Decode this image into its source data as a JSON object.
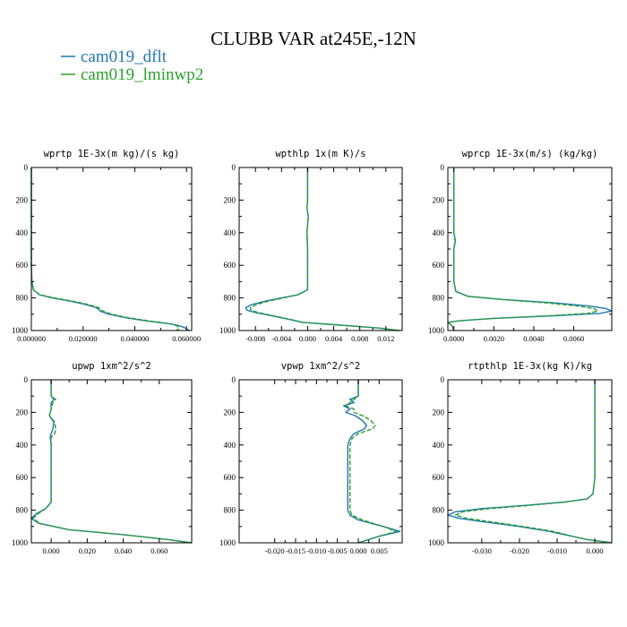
{
  "title": "CLUBB VAR at245E,-12N",
  "legend": [
    {
      "label": "cam019_dflt",
      "color": "#1f77b4"
    },
    {
      "label": "cam019_lminwp2",
      "color": "#2ca02c"
    }
  ],
  "chart_data": [
    {
      "type": "line",
      "title": "wprtp  1E-3x(m kg)/(s kg)",
      "xlim": [
        0,
        0.062
      ],
      "ylim": [
        1000,
        0
      ],
      "xticks": [
        0,
        0.02,
        0.04,
        0.06
      ],
      "xtick_labels": [
        "0.000000",
        "0.020000",
        "0.040000",
        "0.060000"
      ],
      "yticks": [
        0,
        200,
        400,
        600,
        800,
        1000
      ],
      "ytick_labels": [
        "0",
        "200",
        "400",
        "600",
        "800",
        "1000"
      ],
      "series": [
        {
          "name": "cam019_dflt",
          "y": [
            0,
            100,
            200,
            300,
            400,
            500,
            600,
            700,
            750,
            780,
            800,
            820,
            840,
            860,
            870,
            880,
            900,
            920,
            940,
            950,
            960,
            970,
            980,
            990,
            1000
          ],
          "x": [
            0,
            0,
            0,
            0,
            0,
            0,
            0,
            0.0002,
            0.0008,
            0.003,
            0.008,
            0.015,
            0.021,
            0.025,
            0.026,
            0.0265,
            0.03,
            0.036,
            0.044,
            0.049,
            0.054,
            0.057,
            0.059,
            0.06,
            0.061
          ]
        },
        {
          "name": "cam019_lminwp2",
          "y": [
            0,
            100,
            200,
            300,
            400,
            500,
            600,
            700,
            750,
            780,
            800,
            820,
            840,
            860,
            870,
            880,
            900,
            920,
            940,
            950,
            960,
            970,
            980,
            990,
            1000
          ],
          "x": [
            0,
            0,
            0,
            0,
            0,
            0,
            0,
            0.0002,
            0.0008,
            0.0032,
            0.009,
            0.016,
            0.022,
            0.026,
            0.027,
            0.0275,
            0.031,
            0.037,
            0.045,
            0.05,
            0.054,
            0.056,
            0.057,
            0.057,
            0.056
          ]
        }
      ]
    },
    {
      "type": "line",
      "title": "wpthlp  1x(m K)/s",
      "xlim": [
        -0.0105,
        0.0145
      ],
      "ylim": [
        1000,
        0
      ],
      "xticks": [
        -0.008,
        -0.004,
        0,
        0.004,
        0.008,
        0.012
      ],
      "xtick_labels": [
        "-0.008",
        "-0.004",
        "0.000",
        "0.004",
        "0.008",
        "0.012"
      ],
      "yticks": [
        0,
        200,
        400,
        600,
        800,
        1000
      ],
      "ytick_labels": [
        "0",
        "200",
        "400",
        "600",
        "800",
        "1000"
      ],
      "series": [
        {
          "name": "cam019_dflt",
          "y": [
            0,
            100,
            200,
            250,
            300,
            350,
            400,
            500,
            600,
            700,
            750,
            780,
            800,
            820,
            840,
            860,
            875,
            890,
            910,
            930,
            950,
            970,
            985,
            1000
          ],
          "x": [
            0,
            0,
            0,
            -0.0001,
            0.0001,
            0,
            -0.0001,
            0,
            0,
            0,
            0,
            -0.0015,
            -0.004,
            -0.0065,
            -0.0085,
            -0.0095,
            -0.0093,
            -0.008,
            -0.0055,
            -0.003,
            -0.0008,
            0.006,
            0.011,
            0.014
          ]
        },
        {
          "name": "cam019_lminwp2",
          "y": [
            0,
            100,
            200,
            250,
            300,
            350,
            400,
            500,
            600,
            700,
            750,
            780,
            800,
            820,
            840,
            860,
            875,
            890,
            910,
            930,
            950,
            970,
            985,
            1000
          ],
          "x": [
            0,
            0,
            0,
            -0.0001,
            0.0001,
            0,
            -0.0001,
            0,
            0,
            0,
            0,
            -0.0014,
            -0.0037,
            -0.006,
            -0.0078,
            -0.0088,
            -0.0087,
            -0.0075,
            -0.0052,
            -0.0028,
            -0.0007,
            0.006,
            0.011,
            0.014
          ]
        }
      ]
    },
    {
      "type": "line",
      "title": "wprcp  1E-3x(m/s) (kg/kg)",
      "xlim": [
        -0.0003,
        0.0079
      ],
      "ylim": [
        1000,
        0
      ],
      "xticks": [
        0,
        0.002,
        0.004,
        0.006
      ],
      "xtick_labels": [
        "0.0000",
        "0.0020",
        "0.0040",
        "0.0060"
      ],
      "yticks": [
        0,
        200,
        400,
        600,
        800,
        1000
      ],
      "ytick_labels": [
        "0",
        "200",
        "400",
        "600",
        "800",
        "1000"
      ],
      "series": [
        {
          "name": "cam019_dflt",
          "y": [
            0,
            200,
            400,
            450,
            500,
            600,
            700,
            760,
            790,
            810,
            830,
            850,
            865,
            880,
            895,
            910,
            925,
            940,
            950,
            970,
            1000
          ],
          "x": [
            0,
            0,
            0,
            8e-05,
            0,
            0,
            0,
            0.0001,
            0.0007,
            0.0025,
            0.005,
            0.0068,
            0.0076,
            0.0079,
            0.0073,
            0.005,
            0.002,
            0.0003,
            -0.0003,
            -0.0001,
            0
          ]
        },
        {
          "name": "cam019_lminwp2",
          "y": [
            0,
            200,
            400,
            450,
            500,
            600,
            700,
            760,
            790,
            810,
            830,
            850,
            865,
            880,
            895,
            910,
            925,
            940,
            950,
            970,
            1000
          ],
          "x": [
            0,
            0,
            0,
            6e-05,
            0,
            0,
            0,
            0.0001,
            0.0007,
            0.0024,
            0.0046,
            0.0062,
            0.007,
            0.0072,
            0.0067,
            0.0047,
            0.002,
            0.0003,
            -0.0003,
            -0.0001,
            0
          ]
        }
      ]
    },
    {
      "type": "line",
      "title": "upwp  1xm^2/s^2",
      "xlim": [
        -0.011,
        0.078
      ],
      "ylim": [
        1000,
        0
      ],
      "xticks": [
        0,
        0.02,
        0.04,
        0.06
      ],
      "xtick_labels": [
        "0.000",
        "0.020",
        "0.040",
        "0.060"
      ],
      "yticks": [
        0,
        200,
        400,
        600,
        800,
        1000
      ],
      "ytick_labels": [
        "0",
        "200",
        "400",
        "600",
        "800",
        "1000"
      ],
      "series": [
        {
          "name": "cam019_dflt",
          "y": [
            0,
            100,
            120,
            140,
            180,
            220,
            260,
            300,
            330,
            350,
            400,
            500,
            600,
            700,
            750,
            790,
            820,
            850,
            880,
            920,
            950,
            980,
            1000
          ],
          "x": [
            0,
            0,
            0.0015,
            0,
            0,
            -0.001,
            0.0015,
            0.001,
            0,
            -0.0005,
            0,
            0,
            0,
            0,
            0,
            -0.003,
            -0.008,
            -0.011,
            -0.007,
            0.01,
            0.04,
            0.065,
            0.078
          ]
        },
        {
          "name": "cam019_lminwp2",
          "y": [
            0,
            100,
            120,
            140,
            180,
            220,
            260,
            300,
            330,
            350,
            400,
            500,
            600,
            700,
            750,
            790,
            820,
            850,
            880,
            920,
            950,
            980,
            1000
          ],
          "x": [
            0,
            0,
            0.0025,
            0.001,
            0,
            -0.001,
            0.002,
            0.0025,
            0.002,
            0,
            0,
            0,
            0,
            0,
            0,
            -0.003,
            -0.007,
            -0.01,
            -0.0065,
            0.01,
            0.04,
            0.065,
            0.078
          ]
        }
      ]
    },
    {
      "type": "line",
      "title": "vpwp  1xm^2/s^2",
      "xlim": [
        -0.0285,
        0.0105
      ],
      "ylim": [
        1000,
        0
      ],
      "xticks": [
        -0.02,
        -0.015,
        -0.01,
        -0.005,
        0,
        0.005
      ],
      "xtick_labels": [
        "-0.020",
        "-0.015",
        "-0.010",
        "-0.005",
        "0.000",
        "0.005"
      ],
      "yticks": [
        0,
        200,
        400,
        600,
        800,
        1000
      ],
      "ytick_labels": [
        "0",
        "200",
        "400",
        "600",
        "800",
        "1000"
      ],
      "series": [
        {
          "name": "cam019_dflt",
          "y": [
            0,
            100,
            120,
            140,
            160,
            180,
            200,
            220,
            250,
            280,
            300,
            330,
            360,
            400,
            500,
            600,
            700,
            800,
            830,
            860,
            900,
            930,
            960,
            1000
          ],
          "x": [
            0,
            0,
            -0.002,
            -0.001,
            -0.0035,
            -0.002,
            -0.003,
            -0.0008,
            0.001,
            0.002,
            0.0015,
            -0.001,
            -0.002,
            -0.0025,
            -0.0025,
            -0.0025,
            -0.0025,
            -0.0025,
            -0.002,
            0,
            0.006,
            0.01,
            0.005,
            0
          ]
        },
        {
          "name": "cam019_lminwp2",
          "y": [
            0,
            100,
            120,
            140,
            160,
            180,
            200,
            220,
            250,
            280,
            300,
            330,
            360,
            400,
            500,
            600,
            700,
            800,
            830,
            860,
            900,
            930,
            960,
            1000
          ],
          "x": [
            0,
            0,
            -0.001,
            -0.002,
            -0.003,
            -0.001,
            -0.001,
            0.001,
            0.003,
            0.004,
            0.0035,
            0,
            -0.0015,
            -0.002,
            -0.002,
            -0.002,
            -0.002,
            -0.002,
            -0.0015,
            0.001,
            0.006,
            0.009,
            0.005,
            0
          ]
        }
      ]
    },
    {
      "type": "line",
      "title": "rtpthlp  1E-3x(kg K)/kg",
      "xlim": [
        -0.039,
        0.0045
      ],
      "ylim": [
        1000,
        0
      ],
      "xticks": [
        -0.03,
        -0.02,
        -0.01,
        0
      ],
      "xtick_labels": [
        "-0.030",
        "-0.020",
        "-0.010",
        "0.000"
      ],
      "yticks": [
        0,
        200,
        400,
        600,
        800,
        1000
      ],
      "ytick_labels": [
        "0",
        "200",
        "400",
        "600",
        "800",
        "1000"
      ],
      "series": [
        {
          "name": "cam019_dflt",
          "y": [
            0,
            200,
            400,
            600,
            700,
            730,
            750,
            770,
            790,
            810,
            830,
            850,
            870,
            900,
            930,
            960,
            980,
            1000
          ],
          "x": [
            0,
            0,
            0,
            0,
            -0.0005,
            -0.002,
            -0.008,
            -0.018,
            -0.03,
            -0.037,
            -0.039,
            -0.036,
            -0.03,
            -0.02,
            -0.012,
            -0.006,
            -0.002,
            0.0045
          ]
        },
        {
          "name": "cam019_lminwp2",
          "y": [
            0,
            200,
            400,
            600,
            700,
            730,
            750,
            770,
            790,
            810,
            830,
            850,
            870,
            900,
            930,
            960,
            980,
            1000
          ],
          "x": [
            0,
            0,
            0,
            0,
            -0.0005,
            -0.002,
            -0.008,
            -0.017,
            -0.028,
            -0.035,
            -0.037,
            -0.034,
            -0.028,
            -0.019,
            -0.011,
            -0.006,
            -0.002,
            0.0045
          ]
        }
      ]
    }
  ]
}
